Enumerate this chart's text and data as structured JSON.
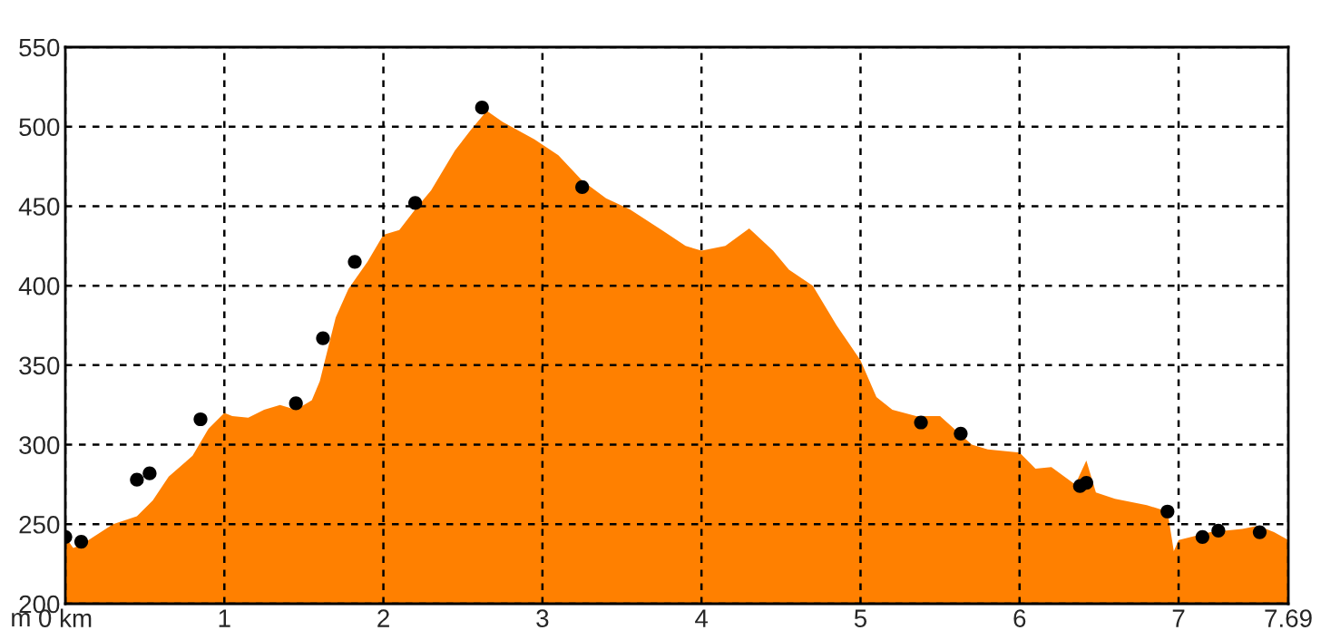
{
  "chart_data": {
    "type": "area",
    "ylabel": "m",
    "xlim": [
      0,
      7.69
    ],
    "ylim": [
      200,
      550
    ],
    "xticks": [
      {
        "value": 0,
        "label": "0 km"
      },
      1,
      2,
      3,
      4,
      5,
      6,
      7,
      7.69
    ],
    "yticks": [
      200,
      250,
      300,
      350,
      400,
      450,
      500,
      550
    ],
    "grid": true,
    "legend": false,
    "series": [
      {
        "type": "area",
        "color": "#ff8000",
        "x": [
          0,
          0.05,
          0.1,
          0.3,
          0.45,
          0.55,
          0.65,
          0.8,
          0.9,
          1.0,
          1.05,
          1.15,
          1.25,
          1.35,
          1.45,
          1.55,
          1.6,
          1.65,
          1.7,
          1.78,
          1.9,
          2.0,
          2.1,
          2.2,
          2.3,
          2.45,
          2.55,
          2.65,
          2.75,
          2.95,
          3.1,
          3.25,
          3.4,
          3.55,
          3.75,
          3.9,
          4.0,
          4.15,
          4.3,
          4.45,
          4.55,
          4.7,
          4.85,
          5.0,
          5.1,
          5.2,
          5.35,
          5.5,
          5.7,
          5.8,
          6.0,
          6.1,
          6.2,
          6.35,
          6.42,
          6.48,
          6.6,
          6.8,
          6.93,
          6.97,
          7.0,
          7.2,
          7.4,
          7.5,
          7.6,
          7.69
        ],
        "values": [
          242,
          235,
          237,
          250,
          255,
          265,
          280,
          293,
          310,
          320,
          318,
          317,
          322,
          325,
          322,
          328,
          340,
          360,
          380,
          398,
          415,
          432,
          435,
          448,
          460,
          485,
          498,
          510,
          503,
          492,
          482,
          466,
          455,
          448,
          435,
          425,
          422,
          425,
          436,
          422,
          410,
          400,
          375,
          353,
          330,
          322,
          318,
          318,
          300,
          297,
          295,
          285,
          286,
          275,
          290,
          270,
          266,
          262,
          258,
          233,
          240,
          245,
          247,
          249,
          245,
          240
        ]
      },
      {
        "type": "scatter",
        "color": "#000000",
        "marker": "circle",
        "x": [
          0,
          0.1,
          0.45,
          0.53,
          0.85,
          1.45,
          1.62,
          1.82,
          2.2,
          2.62,
          3.25,
          5.38,
          5.63,
          6.38,
          6.42,
          6.93,
          7.15,
          7.25,
          7.51
        ],
        "values": [
          242,
          239,
          278,
          282,
          316,
          326,
          367,
          415,
          452,
          512,
          462,
          314,
          307,
          274,
          276,
          258,
          242,
          246,
          245
        ]
      }
    ]
  }
}
